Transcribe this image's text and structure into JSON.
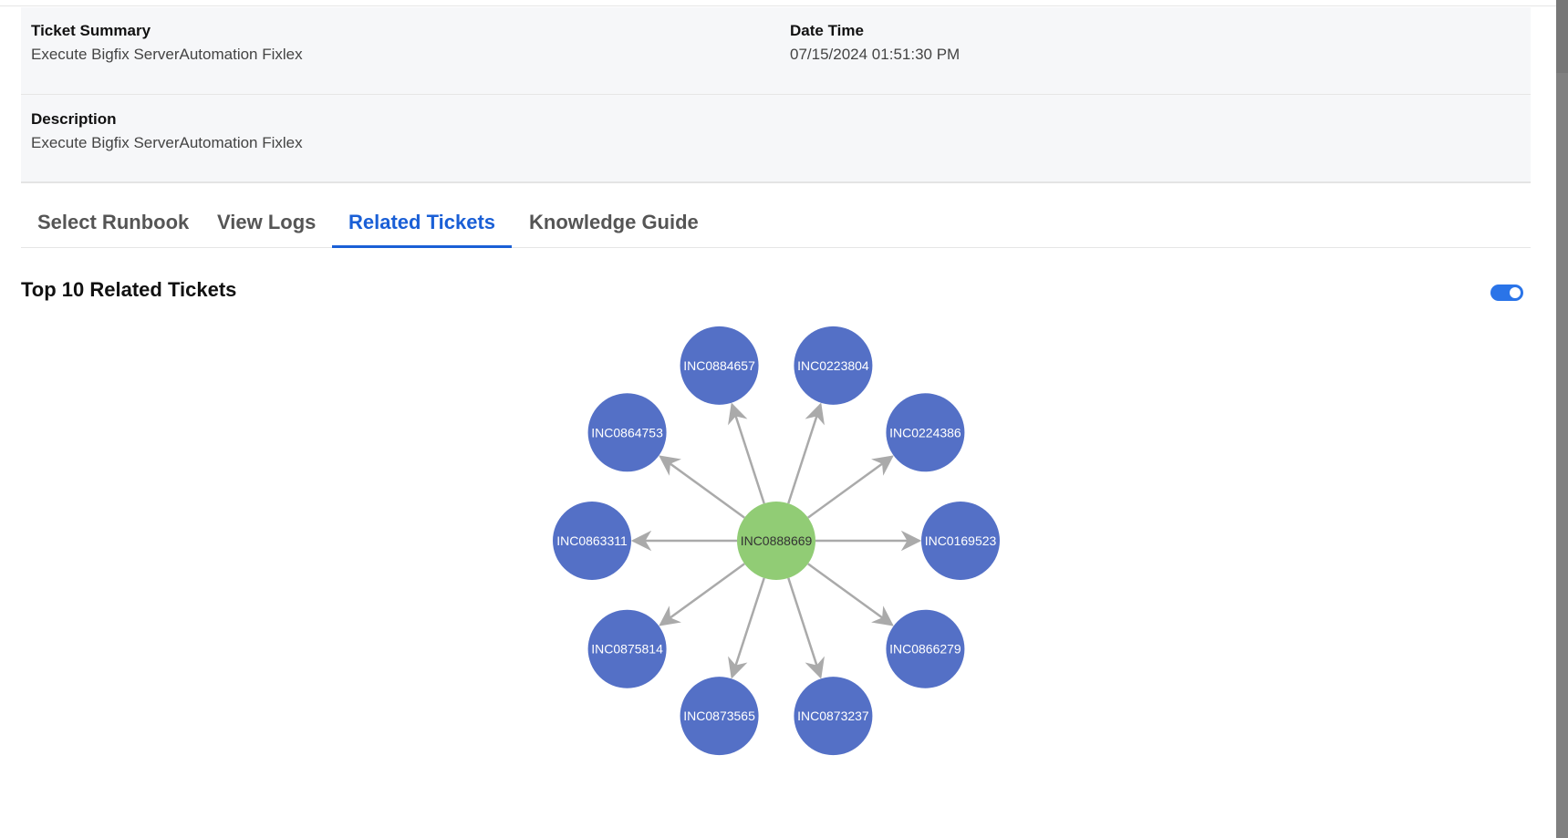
{
  "ticket": {
    "summary_label": "Ticket Summary",
    "summary_value": "Execute Bigfix ServerAutomation Fixlex",
    "datetime_label": "Date Time",
    "datetime_value": "07/15/2024 01:51:30 PM",
    "description_label": "Description",
    "description_value": "Execute Bigfix ServerAutomation Fixlex"
  },
  "tabs": [
    {
      "label": "Select Runbook",
      "active": false
    },
    {
      "label": "View Logs",
      "active": false
    },
    {
      "label": "Related Tickets",
      "active": true
    },
    {
      "label": "Knowledge Guide",
      "active": false
    }
  ],
  "section": {
    "title": "Top 10 Related Tickets",
    "toggle_on": true
  },
  "graph": {
    "center": "INC0888669",
    "related": [
      "INC0169523",
      "INC0224386",
      "INC0223804",
      "INC0884657",
      "INC0864753",
      "INC0863311",
      "INC0875814",
      "INC0873565",
      "INC0873237",
      "INC0866279"
    ],
    "colors": {
      "center": "#91cc75",
      "related": "#5470c6",
      "edge": "#aaaaaa",
      "accent": "#1a5fd6",
      "toggle": "#2a74e8"
    }
  }
}
